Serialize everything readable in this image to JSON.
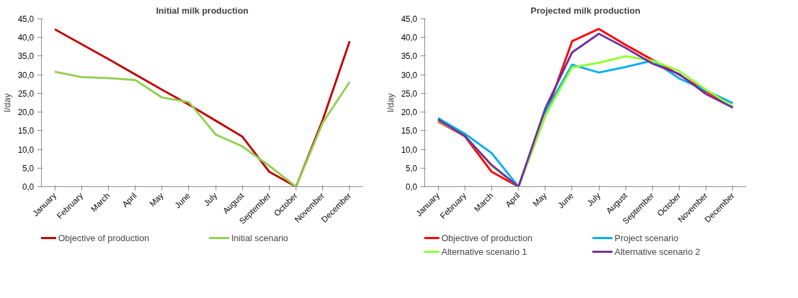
{
  "chart_data": [
    {
      "type": "line",
      "title": "Initial milk production",
      "ylabel": "l/day",
      "legend": "bottom",
      "grid": false,
      "marker": "none",
      "categories": [
        "January",
        "February",
        "March",
        "April",
        "May",
        "June",
        "July",
        "August",
        "September",
        "October",
        "November",
        "December"
      ],
      "ylim": [
        0,
        45
      ],
      "yticks": [
        {
          "value": 0,
          "label": "0,0"
        },
        {
          "value": 5,
          "label": "5,0"
        },
        {
          "value": 10,
          "label": "10,0"
        },
        {
          "value": 15,
          "label": "15,0"
        },
        {
          "value": 20,
          "label": "20,0"
        },
        {
          "value": 25,
          "label": "25,0"
        },
        {
          "value": 30,
          "label": "30,0"
        },
        {
          "value": 35,
          "label": "35,0"
        },
        {
          "value": 40,
          "label": "40,0"
        },
        {
          "value": 45,
          "label": "45,0"
        }
      ],
      "series": [
        {
          "name": "Objective of production",
          "color": "#c00000",
          "values": [
            42.2,
            38.2,
            34.2,
            30.1,
            26.0,
            22.0,
            17.7,
            13.4,
            4.0,
            0,
            18.0,
            39.0
          ]
        },
        {
          "name": "Initial scenario",
          "color": "#92d050",
          "values": [
            30.8,
            29.4,
            29.1,
            28.6,
            23.9,
            22.7,
            14.0,
            10.8,
            5.6,
            0,
            17.2,
            28.1
          ]
        }
      ]
    },
    {
      "type": "line",
      "title": "Projected milk production",
      "ylabel": "l/day",
      "legend": "bottom",
      "grid": false,
      "marker": "none",
      "categories": [
        "January",
        "February",
        "March",
        "April",
        "May",
        "June",
        "July",
        "August",
        "September",
        "October",
        "November",
        "December"
      ],
      "ylim": [
        0,
        45
      ],
      "yticks": [
        {
          "value": 0,
          "label": "0,0"
        },
        {
          "value": 5,
          "label": "5,0"
        },
        {
          "value": 10,
          "label": "10,0"
        },
        {
          "value": 15,
          "label": "15,0"
        },
        {
          "value": 20,
          "label": "20,0"
        },
        {
          "value": 25,
          "label": "25,0"
        },
        {
          "value": 30,
          "label": "30,0"
        },
        {
          "value": 35,
          "label": "35,0"
        },
        {
          "value": 40,
          "label": "40,0"
        },
        {
          "value": 45,
          "label": "45,0"
        }
      ],
      "series": [
        {
          "name": "Objective of production",
          "color": "#ff0000",
          "values": [
            17.5,
            13.5,
            4.0,
            0,
            19.0,
            39.0,
            42.3,
            38.0,
            34.0,
            30.0,
            25.5,
            21.5
          ]
        },
        {
          "name": "Project scenario",
          "color": "#00b0f0",
          "values": [
            18.4,
            14.2,
            9.0,
            0,
            20.0,
            32.7,
            30.6,
            32.1,
            33.8,
            29.0,
            25.8,
            22.4
          ]
        },
        {
          "name": "Alternative scenario 1",
          "color": "#92ff33",
          "values": [
            17.8,
            13.6,
            5.6,
            0,
            19.0,
            32.0,
            33.2,
            35.0,
            33.8,
            31.0,
            26.0,
            21.5
          ]
        },
        {
          "name": "Alternative scenario 2",
          "color": "#7030a0",
          "values": [
            18.0,
            13.6,
            5.8,
            0,
            21.0,
            36.0,
            41.0,
            37.2,
            33.0,
            30.2,
            24.8,
            21.2
          ]
        }
      ]
    }
  ]
}
